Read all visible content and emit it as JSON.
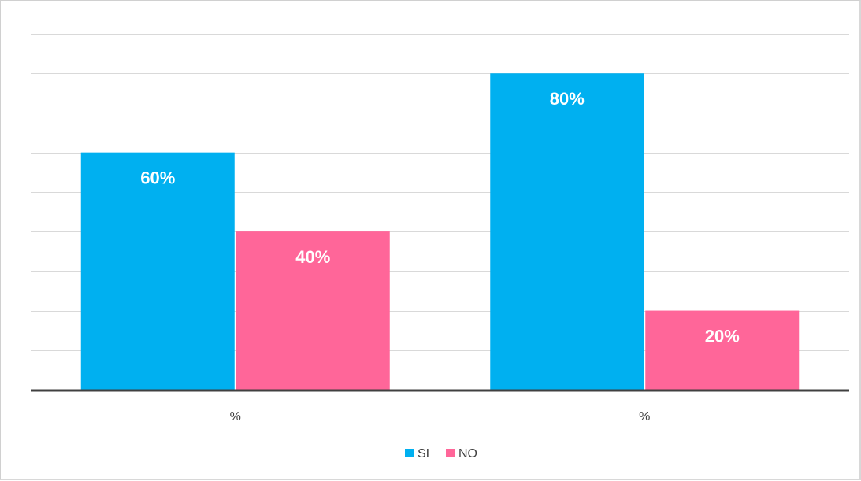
{
  "chart_data": {
    "type": "bar",
    "title": "",
    "xlabel": "",
    "ylabel": "",
    "categories": [
      "%",
      "%"
    ],
    "series": [
      {
        "name": "SI",
        "values": [
          60,
          80
        ],
        "labels": [
          "60%",
          "80%"
        ],
        "color": "#00B0F0"
      },
      {
        "name": "NO",
        "values": [
          40,
          20
        ],
        "labels": [
          "40%",
          "20%"
        ],
        "color": "#FF6699"
      }
    ],
    "ylim": [
      0,
      90
    ],
    "gridlines": true,
    "gridline_step": 10,
    "legend_position": "bottom",
    "axis_color": "#404040",
    "grid_color": "#d9d9d9"
  }
}
